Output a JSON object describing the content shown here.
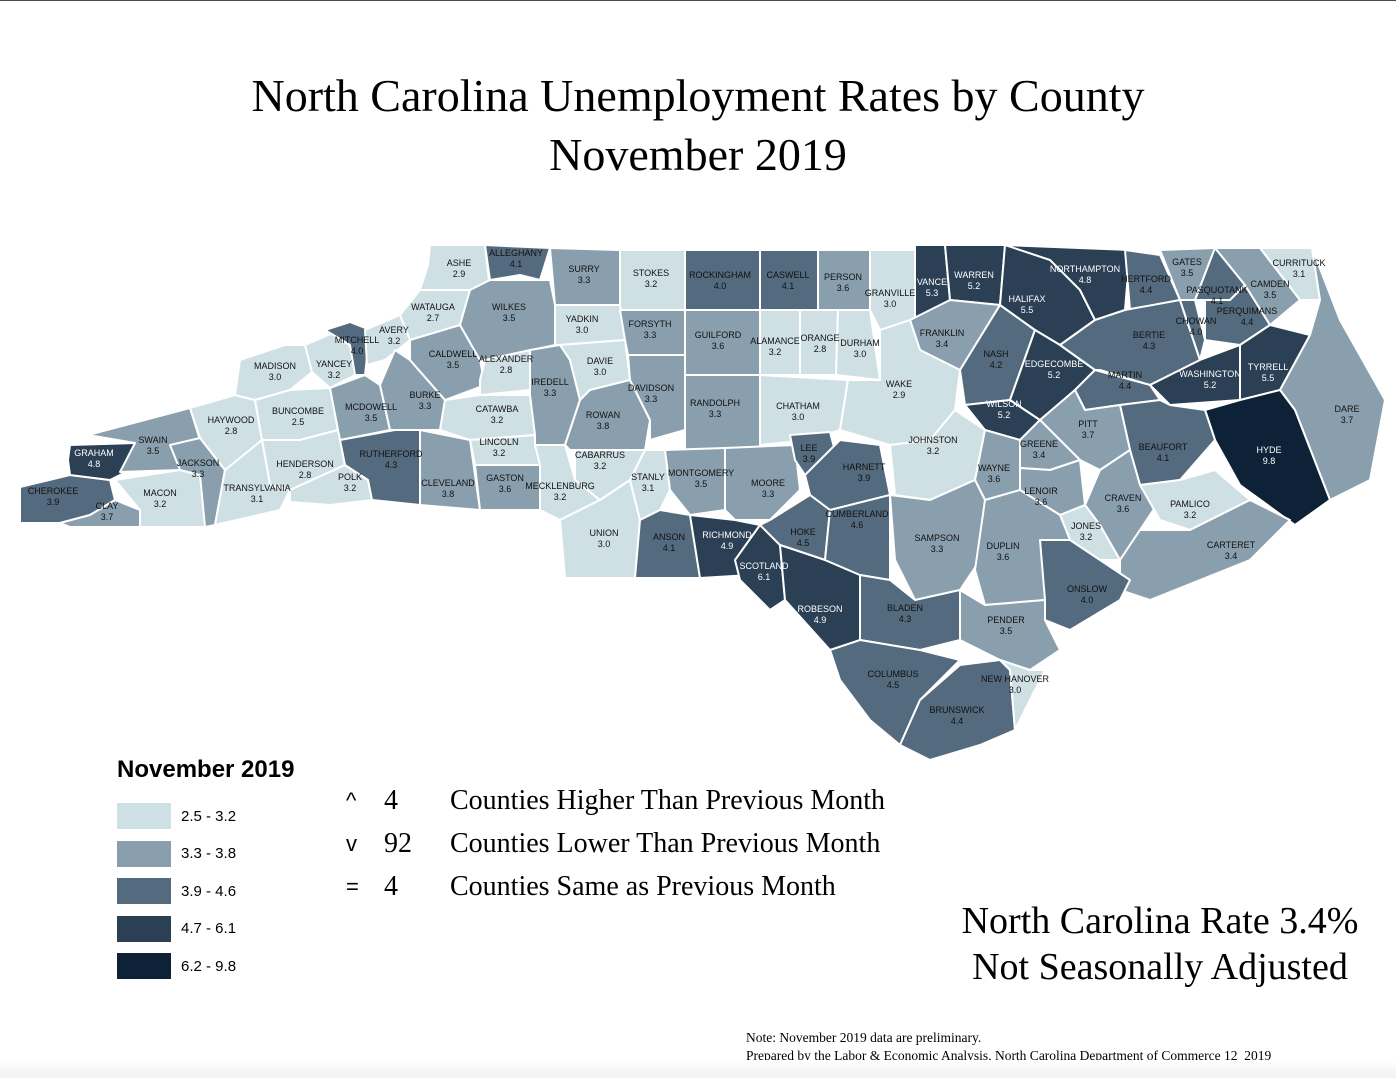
{
  "title": {
    "line1": "North Carolina Unemployment Rates by County",
    "line2": "November 2019"
  },
  "legend": {
    "title": "November 2019",
    "bins": [
      {
        "label": "2.5 - 3.2",
        "color": "#cfe0e5"
      },
      {
        "label": "3.3 - 3.8",
        "color": "#8a9fad"
      },
      {
        "label": "3.9 - 4.6",
        "color": "#546a7e"
      },
      {
        "label": "4.7 - 6.1",
        "color": "#2b3f55"
      },
      {
        "label": "6.2 - 9.8",
        "color": "#0d2236"
      }
    ]
  },
  "changes": [
    {
      "symbol": "^",
      "count": "4",
      "label": "Counties Higher Than Previous Month"
    },
    {
      "symbol": "v",
      "count": "92",
      "label": "Counties Lower Than Previous Month"
    },
    {
      "symbol": "=",
      "count": "4",
      "label": "Counties Same as Previous Month"
    }
  ],
  "state_rate": {
    "line1": "North Carolina Rate 3.4%",
    "line2": "Not Seasonally Adjusted"
  },
  "notes": {
    "line1": "Note: November 2019 data are preliminary.",
    "line2": "Prepared by the Labor & Economic Analysis, North Carolina Department of Commerce 12_2019"
  },
  "chart_data": {
    "type": "choropleth",
    "title": "North Carolina Unemployment Rates by County, November 2019",
    "legend_position": "bottom-left",
    "state_rate": 3.4,
    "seasonal_adjustment": "Not Seasonally Adjusted",
    "counts": {
      "higher": 4,
      "lower": 92,
      "same": 4
    },
    "counties": [
      {
        "name": "ALAMANCE",
        "rate": 3.2
      },
      {
        "name": "ALEXANDER",
        "rate": 2.8
      },
      {
        "name": "ALLEGHANY",
        "rate": 4.1
      },
      {
        "name": "ANSON",
        "rate": 4.1
      },
      {
        "name": "ASHE",
        "rate": 2.9
      },
      {
        "name": "AVERY",
        "rate": 3.2
      },
      {
        "name": "BEAUFORT",
        "rate": 4.1
      },
      {
        "name": "BERTIE",
        "rate": 4.3
      },
      {
        "name": "BLADEN",
        "rate": 4.3
      },
      {
        "name": "BRUNSWICK",
        "rate": 4.4
      },
      {
        "name": "BUNCOMBE",
        "rate": 2.5
      },
      {
        "name": "BURKE",
        "rate": 3.3
      },
      {
        "name": "CABARRUS",
        "rate": 3.2
      },
      {
        "name": "CALDWELL",
        "rate": 3.5
      },
      {
        "name": "CAMDEN",
        "rate": 3.5
      },
      {
        "name": "CARTERET",
        "rate": 3.4
      },
      {
        "name": "CASWELL",
        "rate": 4.1
      },
      {
        "name": "CATAWBA",
        "rate": 3.2
      },
      {
        "name": "CHATHAM",
        "rate": 3.0
      },
      {
        "name": "CHEROKEE",
        "rate": 3.9
      },
      {
        "name": "CHOWAN",
        "rate": 4.0
      },
      {
        "name": "CLAY",
        "rate": 3.7
      },
      {
        "name": "CLEVELAND",
        "rate": 3.8
      },
      {
        "name": "COLUMBUS",
        "rate": 4.5
      },
      {
        "name": "CRAVEN",
        "rate": 3.6
      },
      {
        "name": "CUMBERLAND",
        "rate": 4.6
      },
      {
        "name": "CURRITUCK",
        "rate": 3.1
      },
      {
        "name": "DARE",
        "rate": 3.7
      },
      {
        "name": "DAVIDSON",
        "rate": 3.3
      },
      {
        "name": "DAVIE",
        "rate": 3.0
      },
      {
        "name": "DUPLIN",
        "rate": 3.6
      },
      {
        "name": "DURHAM",
        "rate": 3.0
      },
      {
        "name": "EDGECOMBE",
        "rate": 5.2
      },
      {
        "name": "FORSYTH",
        "rate": 3.3
      },
      {
        "name": "FRANKLIN",
        "rate": 3.4
      },
      {
        "name": "GASTON",
        "rate": 3.6
      },
      {
        "name": "GATES",
        "rate": 3.5
      },
      {
        "name": "GRAHAM",
        "rate": 4.8
      },
      {
        "name": "GRANVILLE",
        "rate": 3.0
      },
      {
        "name": "GREENE",
        "rate": 3.4
      },
      {
        "name": "GUILFORD",
        "rate": 3.6
      },
      {
        "name": "HALIFAX",
        "rate": 5.5
      },
      {
        "name": "HARNETT",
        "rate": 3.9
      },
      {
        "name": "HAYWOOD",
        "rate": 2.8
      },
      {
        "name": "HENDERSON",
        "rate": 2.8
      },
      {
        "name": "HERTFORD",
        "rate": 4.4
      },
      {
        "name": "HOKE",
        "rate": 4.5
      },
      {
        "name": "HYDE",
        "rate": 9.8
      },
      {
        "name": "IREDELL",
        "rate": 3.3
      },
      {
        "name": "JACKSON",
        "rate": 3.3
      },
      {
        "name": "JOHNSTON",
        "rate": 3.2
      },
      {
        "name": "JONES",
        "rate": 3.2
      },
      {
        "name": "LEE",
        "rate": 3.9
      },
      {
        "name": "LENOIR",
        "rate": 3.6
      },
      {
        "name": "LINCOLN",
        "rate": 3.2
      },
      {
        "name": "MACON",
        "rate": 3.2
      },
      {
        "name": "MADISON",
        "rate": 3.0
      },
      {
        "name": "MARTIN",
        "rate": 4.4
      },
      {
        "name": "MCDOWELL",
        "rate": 3.5
      },
      {
        "name": "MECKLENBURG",
        "rate": 3.2
      },
      {
        "name": "MITCHELL",
        "rate": 4.0
      },
      {
        "name": "MONTGOMERY",
        "rate": 3.5
      },
      {
        "name": "MOORE",
        "rate": 3.3
      },
      {
        "name": "NASH",
        "rate": 4.2
      },
      {
        "name": "NEW HANOVER",
        "rate": 3.0
      },
      {
        "name": "NORTHAMPTON",
        "rate": 4.8
      },
      {
        "name": "ONSLOW",
        "rate": 4.0
      },
      {
        "name": "ORANGE",
        "rate": 2.8
      },
      {
        "name": "PAMLICO",
        "rate": 3.2
      },
      {
        "name": "PASQUOTANK",
        "rate": 4.1
      },
      {
        "name": "PENDER",
        "rate": 3.5
      },
      {
        "name": "PERQUIMANS",
        "rate": 4.4
      },
      {
        "name": "PERSON",
        "rate": 3.6
      },
      {
        "name": "PITT",
        "rate": 3.7
      },
      {
        "name": "POLK",
        "rate": 3.2
      },
      {
        "name": "RANDOLPH",
        "rate": 3.3
      },
      {
        "name": "RICHMOND",
        "rate": 4.9
      },
      {
        "name": "ROBESON",
        "rate": 4.9
      },
      {
        "name": "ROCKINGHAM",
        "rate": 4.0
      },
      {
        "name": "ROWAN",
        "rate": 3.8
      },
      {
        "name": "RUTHERFORD",
        "rate": 4.3
      },
      {
        "name": "SAMPSON",
        "rate": 3.3
      },
      {
        "name": "SCOTLAND",
        "rate": 6.1
      },
      {
        "name": "STANLY",
        "rate": 3.1
      },
      {
        "name": "STOKES",
        "rate": 3.2
      },
      {
        "name": "SURRY",
        "rate": 3.3
      },
      {
        "name": "SWAIN",
        "rate": 3.5
      },
      {
        "name": "TRANSYLVANIA",
        "rate": 3.1
      },
      {
        "name": "TYRRELL",
        "rate": 5.5
      },
      {
        "name": "UNION",
        "rate": 3.0
      },
      {
        "name": "VANCE",
        "rate": 5.3
      },
      {
        "name": "WAKE",
        "rate": 2.9
      },
      {
        "name": "WARREN",
        "rate": 5.2
      },
      {
        "name": "WASHINGTON",
        "rate": 5.2
      },
      {
        "name": "WATAUGA",
        "rate": 2.7
      },
      {
        "name": "WAYNE",
        "rate": 3.6
      },
      {
        "name": "WILKES",
        "rate": 3.5
      },
      {
        "name": "WILSON",
        "rate": 5.2
      },
      {
        "name": "YADKIN",
        "rate": 3.0
      },
      {
        "name": "YANCEY",
        "rate": 3.2
      }
    ]
  }
}
